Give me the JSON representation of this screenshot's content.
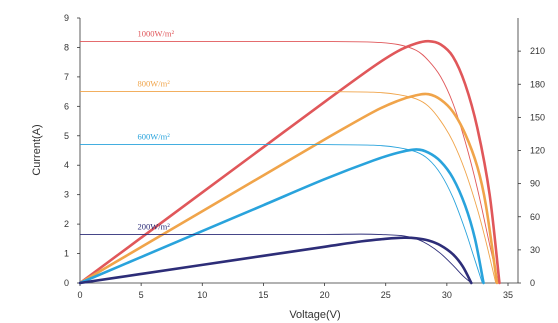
{
  "chart_data": {
    "type": "line",
    "xlabel": "Voltage(V)",
    "ylabel": "Current(A)",
    "y2label": "",
    "xlim": [
      0,
      35
    ],
    "ylim": [
      0,
      9
    ],
    "y2lim": [
      0,
      240
    ],
    "x_ticks": [
      "0",
      "5",
      "10",
      "15",
      "20",
      "25",
      "30",
      "35"
    ],
    "y_ticks": [
      "0",
      "1",
      "2",
      "3",
      "4",
      "5",
      "6",
      "7",
      "8",
      "9"
    ],
    "y2_ticks": [
      "0",
      "30",
      "60",
      "90",
      "120",
      "150",
      "180",
      "210"
    ],
    "grid": false,
    "series": [
      {
        "name": "1000W/m²",
        "color": "#e0575a",
        "iv": {
          "x": [
            0,
            5,
            10,
            15,
            20,
            24,
            26,
            27.5,
            28.5,
            29.5,
            30.5,
            31.5,
            32.5,
            33.5,
            34.2
          ],
          "y": [
            8.2,
            8.2,
            8.2,
            8.2,
            8.2,
            8.18,
            8.1,
            7.9,
            7.55,
            7.0,
            6.1,
            4.8,
            3.2,
            1.3,
            0
          ]
        },
        "pv": {
          "x": [
            0,
            5,
            10,
            15,
            20,
            24,
            26,
            27.5,
            28.5,
            29.5,
            30.5,
            31.5,
            32.5,
            33.5,
            34.3
          ],
          "y": [
            0,
            41,
            82,
            123,
            164,
            196,
            210,
            217,
            219,
            216,
            205,
            180,
            140,
            80,
            0
          ]
        }
      },
      {
        "name": "800W/m²",
        "color": "#f0a44a",
        "iv": {
          "x": [
            0,
            5,
            10,
            15,
            20,
            24,
            26,
            27.5,
            28.5,
            29.5,
            30.5,
            31.5,
            32.5,
            33.2,
            34.0
          ],
          "y": [
            6.5,
            6.5,
            6.5,
            6.5,
            6.5,
            6.48,
            6.4,
            6.25,
            6.0,
            5.5,
            4.8,
            3.8,
            2.5,
            1.4,
            0
          ]
        },
        "pv": {
          "x": [
            0,
            5,
            10,
            15,
            20,
            24,
            26,
            27.5,
            28.5,
            29.5,
            30.5,
            31.5,
            32.5,
            33.2,
            34.1
          ],
          "y": [
            0,
            32.5,
            65,
            97.5,
            130,
            155,
            165,
            170,
            171,
            166,
            155,
            135,
            105,
            70,
            0
          ]
        }
      },
      {
        "name": "600W/m²",
        "color": "#29a3dc",
        "iv": {
          "x": [
            0,
            5,
            10,
            15,
            20,
            24,
            26,
            27.5,
            28.5,
            29.5,
            30.5,
            31.5,
            32.2,
            32.9
          ],
          "y": [
            4.7,
            4.7,
            4.7,
            4.7,
            4.7,
            4.68,
            4.6,
            4.45,
            4.2,
            3.7,
            2.9,
            1.8,
            0.9,
            0
          ]
        },
        "pv": {
          "x": [
            0,
            5,
            10,
            15,
            20,
            24,
            26,
            27.5,
            28.5,
            29.5,
            30.5,
            31.5,
            32.3,
            33.0
          ],
          "y": [
            0,
            23.5,
            47,
            70.5,
            94,
            111,
            118,
            121,
            118,
            110,
            95,
            70,
            40,
            0
          ]
        }
      },
      {
        "name": "200W/m²",
        "color": "#2d2d78",
        "iv": {
          "x": [
            0,
            5,
            10,
            15,
            20,
            23,
            25,
            26.5,
            27.5,
            28.5,
            29.5,
            30.5,
            31.3,
            32.0
          ],
          "y": [
            1.65,
            1.65,
            1.65,
            1.65,
            1.65,
            1.66,
            1.64,
            1.6,
            1.5,
            1.3,
            1.0,
            0.6,
            0.25,
            0
          ]
        },
        "pv": {
          "x": [
            0,
            5,
            10,
            15,
            20,
            23,
            25,
            26.5,
            27.5,
            28.5,
            29.5,
            30.5,
            31.3,
            32.0
          ],
          "y": [
            0,
            8.2,
            16.4,
            24.6,
            32.8,
            37.7,
            40,
            41,
            40.5,
            38.5,
            34,
            26,
            15,
            0
          ]
        }
      }
    ]
  }
}
